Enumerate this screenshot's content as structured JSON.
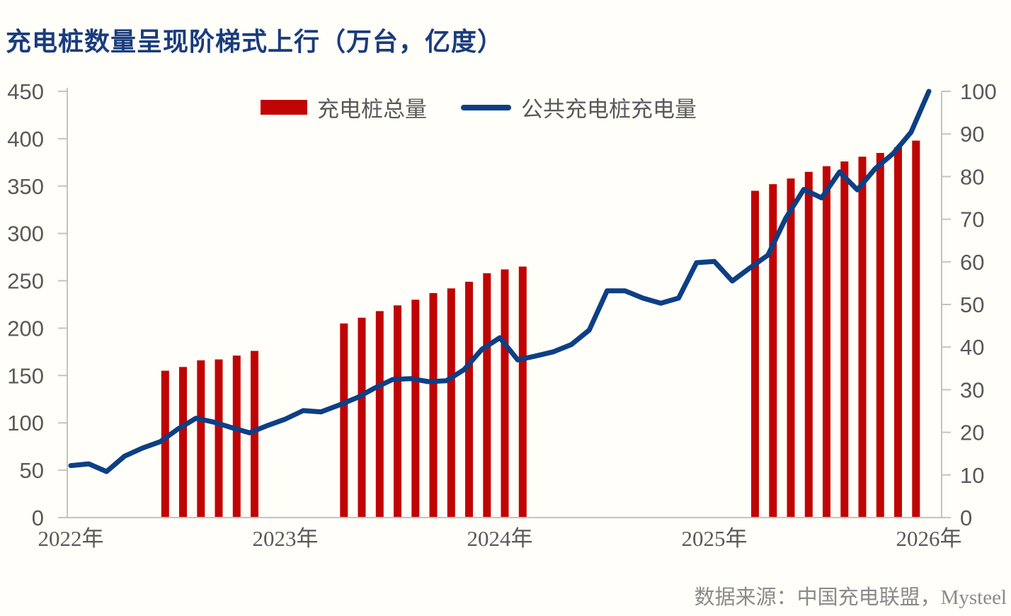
{
  "title": "充电桩数量呈现阶梯式上行（万台，亿度）",
  "source": "数据来源：中国充电联盟，Mysteel",
  "legend": [
    {
      "label": "充电桩总量",
      "swatch": "bar",
      "color": "#C00404"
    },
    {
      "label": "公共充电桩充电量",
      "swatch": "line",
      "color": "#0D3F85"
    }
  ],
  "colors": {
    "title": "#1A3C7D",
    "bar": "#C00404",
    "line": "#0D3F85",
    "axis_text": "#595959",
    "axis_line": "#C3C3C3",
    "source_text": "#8A8A8A",
    "background": "#FFFEF9"
  },
  "chart_data": {
    "type": "combo-bar-line",
    "title": "充电桩数量呈现阶梯式上行（万台，亿度）",
    "x_axis": {
      "labels": [
        "2022年",
        "2023年",
        "2024年",
        "2025年",
        "2026年"
      ],
      "start_month": "2022-01",
      "end_month": "2026-01"
    },
    "left_axis": {
      "min": 0,
      "max": 450,
      "step": 50,
      "ticks": [
        0,
        50,
        100,
        150,
        200,
        250,
        300,
        350,
        400,
        450
      ],
      "unit": "万台"
    },
    "right_axis": {
      "min": 0,
      "max": 100,
      "step": 10,
      "ticks": [
        0,
        10,
        20,
        30,
        40,
        50,
        60,
        70,
        80,
        90,
        100
      ],
      "unit": "亿度"
    },
    "grid": false,
    "legend_position": "top-center",
    "series": [
      {
        "name": "充电桩总量",
        "type": "bar",
        "axis": "left",
        "color": "#C00404",
        "unit": "万台",
        "points": [
          [
            "2022-06",
            155
          ],
          [
            "2022-07",
            159
          ],
          [
            "2022-08",
            166
          ],
          [
            "2022-09",
            167
          ],
          [
            "2022-10",
            171
          ],
          [
            "2022-11",
            176
          ],
          [
            "2023-04",
            205
          ],
          [
            "2023-05",
            211
          ],
          [
            "2023-06",
            218
          ],
          [
            "2023-07",
            224
          ],
          [
            "2023-08",
            230
          ],
          [
            "2023-09",
            237
          ],
          [
            "2023-10",
            242
          ],
          [
            "2023-11",
            249
          ],
          [
            "2023-12",
            258
          ],
          [
            "2024-01",
            262
          ],
          [
            "2024-02",
            265
          ],
          [
            "2025-03",
            345
          ],
          [
            "2025-04",
            352
          ],
          [
            "2025-05",
            358
          ],
          [
            "2025-06",
            365
          ],
          [
            "2025-07",
            371
          ],
          [
            "2025-08",
            376
          ],
          [
            "2025-09",
            381
          ],
          [
            "2025-10",
            385
          ],
          [
            "2025-11",
            391
          ],
          [
            "2025-12",
            398
          ]
        ]
      },
      {
        "name": "公共充电桩充电量",
        "type": "line",
        "axis": "right",
        "color": "#0D3F85",
        "unit": "亿度",
        "points": [
          [
            "2022-01",
            12.2
          ],
          [
            "2022-02",
            12.6
          ],
          [
            "2022-03",
            10.8
          ],
          [
            "2022-04",
            14.4
          ],
          [
            "2022-05",
            16.3
          ],
          [
            "2022-06",
            17.8
          ],
          [
            "2022-07",
            20.8
          ],
          [
            "2022-08",
            23.3
          ],
          [
            "2022-09",
            22.4
          ],
          [
            "2022-10",
            21.1
          ],
          [
            "2022-11",
            19.9
          ],
          [
            "2022-12",
            21.6
          ],
          [
            "2023-01",
            23.1
          ],
          [
            "2023-02",
            25.1
          ],
          [
            "2023-03",
            24.8
          ],
          [
            "2023-04",
            26.4
          ],
          [
            "2023-05",
            28.1
          ],
          [
            "2023-06",
            30.4
          ],
          [
            "2023-07",
            32.4
          ],
          [
            "2023-08",
            32.6
          ],
          [
            "2023-09",
            31.9
          ],
          [
            "2023-10",
            32.1
          ],
          [
            "2023-11",
            34.7
          ],
          [
            "2023-12",
            39.5
          ],
          [
            "2024-01",
            42.2
          ],
          [
            "2024-02",
            37.0
          ],
          [
            "2024-03",
            37.9
          ],
          [
            "2024-04",
            38.9
          ],
          [
            "2024-05",
            40.6
          ],
          [
            "2024-06",
            44.0
          ],
          [
            "2024-07",
            53.2
          ],
          [
            "2024-08",
            53.2
          ],
          [
            "2024-09",
            51.5
          ],
          [
            "2024-10",
            50.3
          ],
          [
            "2024-11",
            51.5
          ],
          [
            "2024-12",
            59.8
          ],
          [
            "2025-01",
            60.1
          ],
          [
            "2025-02",
            55.5
          ],
          [
            "2025-03",
            58.6
          ],
          [
            "2025-04",
            61.6
          ],
          [
            "2025-05",
            70.3
          ],
          [
            "2025-06",
            77.0
          ],
          [
            "2025-07",
            75.0
          ],
          [
            "2025-08",
            81.1
          ],
          [
            "2025-09",
            76.9
          ],
          [
            "2025-10",
            81.9
          ],
          [
            "2025-11",
            85.4
          ],
          [
            "2025-12",
            90.4
          ],
          [
            "2026-01",
            100.0
          ]
        ]
      }
    ]
  }
}
